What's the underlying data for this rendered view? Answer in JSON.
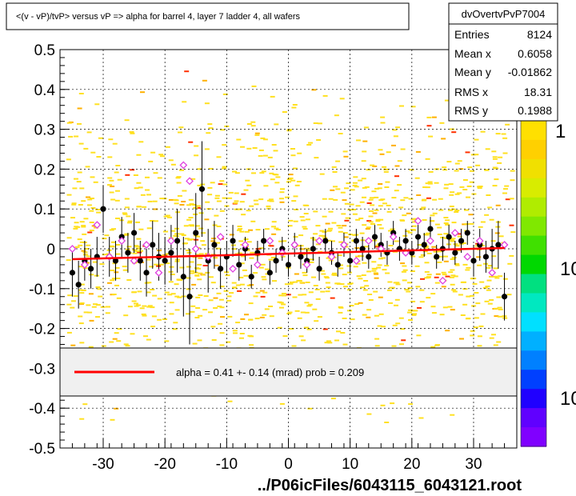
{
  "title": "<(v - vP)/tvP> versus   vP => alpha for barrel 4, layer 7 ladder 4, all wafers",
  "footer_path": "../P06icFiles/6043115_6043121.root",
  "stats": {
    "name": "dvOvertvPvP7004",
    "rows": [
      {
        "label": "Entries",
        "value": "8124"
      },
      {
        "label": "Mean x",
        "value": "0.6058"
      },
      {
        "label": "Mean y",
        "value": "-0.01862"
      },
      {
        "label": "RMS x",
        "value": "18.31"
      },
      {
        "label": "RMS y",
        "value": "0.1988"
      }
    ]
  },
  "fit_legend": {
    "text": "alpha =    0.41 +-  0.14 (mrad) prob = 0.209",
    "line_color": "#ff0000"
  },
  "palette_labels": [
    "1",
    "10",
    "10"
  ],
  "chart_data": {
    "type": "scatter",
    "xlim": [
      -37,
      37
    ],
    "ylim": [
      -0.5,
      0.5
    ],
    "xticks": [
      -30,
      -20,
      -10,
      0,
      10,
      20,
      30
    ],
    "yticks": [
      0.5,
      0.4,
      0.3,
      0.2,
      0.1,
      0,
      -0.1,
      -0.2,
      -0.3,
      -0.4,
      -0.5
    ],
    "grid": true,
    "fit_line": {
      "x": [
        -35,
        35
      ],
      "y": [
        -0.026,
        0.002
      ],
      "color": "#ff0000"
    },
    "series": [
      {
        "marker": "filled-circle",
        "color": "#000000",
        "x": [
          -35,
          -34,
          -33,
          -32,
          -31,
          -30,
          -29,
          -28,
          -27,
          -26,
          -25,
          -24,
          -23,
          -22,
          -21,
          -20,
          -19,
          -18,
          -17,
          -16,
          -15,
          -14,
          -13,
          -12,
          -11,
          -10,
          -9,
          -8,
          -7,
          -6,
          -5,
          -4,
          -3,
          -2,
          -1,
          0,
          1,
          2,
          3,
          4,
          5,
          6,
          7,
          8,
          9,
          10,
          11,
          12,
          13,
          14,
          15,
          16,
          17,
          18,
          19,
          20,
          21,
          22,
          23,
          24,
          25,
          26,
          27,
          28,
          29,
          30,
          31,
          32,
          33,
          34,
          35
        ],
        "y": [
          -0.06,
          -0.09,
          -0.03,
          -0.05,
          -0.02,
          0.1,
          -0.02,
          -0.03,
          0.03,
          -0.01,
          0.04,
          -0.03,
          -0.06,
          0.01,
          -0.02,
          -0.03,
          -0.01,
          0.02,
          -0.07,
          -0.12,
          0.04,
          0.15,
          -0.03,
          0.01,
          -0.05,
          -0.02,
          0.02,
          -0.04,
          0.0,
          -0.07,
          -0.01,
          0.02,
          -0.06,
          -0.03,
          0.0,
          -0.04,
          0.01,
          -0.02,
          -0.03,
          0.0,
          -0.05,
          0.02,
          -0.01,
          -0.04,
          0.01,
          -0.03,
          0.02,
          0.0,
          -0.02,
          0.03,
          0.01,
          -0.01,
          0.04,
          0.0,
          0.02,
          -0.01,
          0.03,
          0.01,
          0.05,
          -0.02,
          0.0,
          0.03,
          -0.01,
          0.02,
          0.04,
          -0.03,
          0.01,
          -0.02,
          0.0,
          0.01,
          -0.12
        ],
        "err": [
          0.06,
          0.06,
          0.05,
          0.05,
          0.05,
          0.06,
          0.05,
          0.05,
          0.05,
          0.05,
          0.05,
          0.05,
          0.06,
          0.06,
          0.06,
          0.06,
          0.07,
          0.08,
          0.1,
          0.12,
          0.1,
          0.12,
          0.08,
          0.06,
          0.05,
          0.04,
          0.04,
          0.04,
          0.03,
          0.03,
          0.03,
          0.03,
          0.03,
          0.03,
          0.03,
          0.03,
          0.03,
          0.03,
          0.03,
          0.03,
          0.03,
          0.03,
          0.03,
          0.03,
          0.03,
          0.03,
          0.03,
          0.03,
          0.03,
          0.03,
          0.03,
          0.03,
          0.03,
          0.03,
          0.03,
          0.03,
          0.03,
          0.03,
          0.03,
          0.03,
          0.03,
          0.03,
          0.03,
          0.03,
          0.03,
          0.04,
          0.04,
          0.04,
          0.05,
          0.06,
          0.06
        ]
      },
      {
        "marker": "open-diamond",
        "color": "#e040e0",
        "x": [
          -35,
          -33,
          -31,
          -29,
          -27,
          -25,
          -23,
          -21,
          -19,
          -17,
          -16,
          -15,
          -13,
          -11,
          -9,
          -7,
          -5,
          -3,
          -1,
          1,
          3,
          5,
          7,
          9,
          11,
          13,
          15,
          17,
          19,
          21,
          23,
          25,
          27,
          29,
          31,
          33,
          35
        ],
        "y": [
          0.0,
          -0.04,
          0.06,
          -0.02,
          0.02,
          -0.03,
          0.01,
          -0.06,
          0.02,
          0.21,
          0.17,
          0.0,
          -0.02,
          0.03,
          -0.05,
          0.01,
          -0.04,
          0.02,
          -0.01,
          0.01,
          -0.04,
          0.02,
          -0.02,
          0.01,
          -0.03,
          0.02,
          0.0,
          0.03,
          -0.01,
          0.07,
          0.02,
          -0.08,
          0.04,
          -0.02,
          0.02,
          -0.06,
          0.01
        ]
      }
    ]
  }
}
